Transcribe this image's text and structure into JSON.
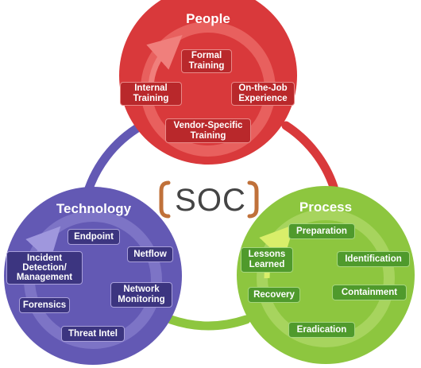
{
  "center": {
    "label": "SOC"
  },
  "people": {
    "title": "People",
    "items": [
      "Formal\nTraining",
      "Internal\nTraining",
      "On-the-Job\nExperience",
      "Vendor-Specific\nTraining"
    ]
  },
  "process": {
    "title": "Process",
    "items": [
      "Preparation",
      "Lessons\nLearned",
      "Identification",
      "Recovery",
      "Containment",
      "Eradication"
    ]
  },
  "technology": {
    "title": "Technology",
    "items": [
      "Endpoint",
      "Incident\nDetection/\nManagement",
      "Netflow",
      "Network\nMonitoring",
      "Forensics",
      "Threat Intel"
    ]
  },
  "colors": {
    "people": "#d9393b",
    "process": "#8dc63f",
    "technology": "#6359b4",
    "soc_bracket": "#c0713a",
    "soc_text": "#444444"
  }
}
